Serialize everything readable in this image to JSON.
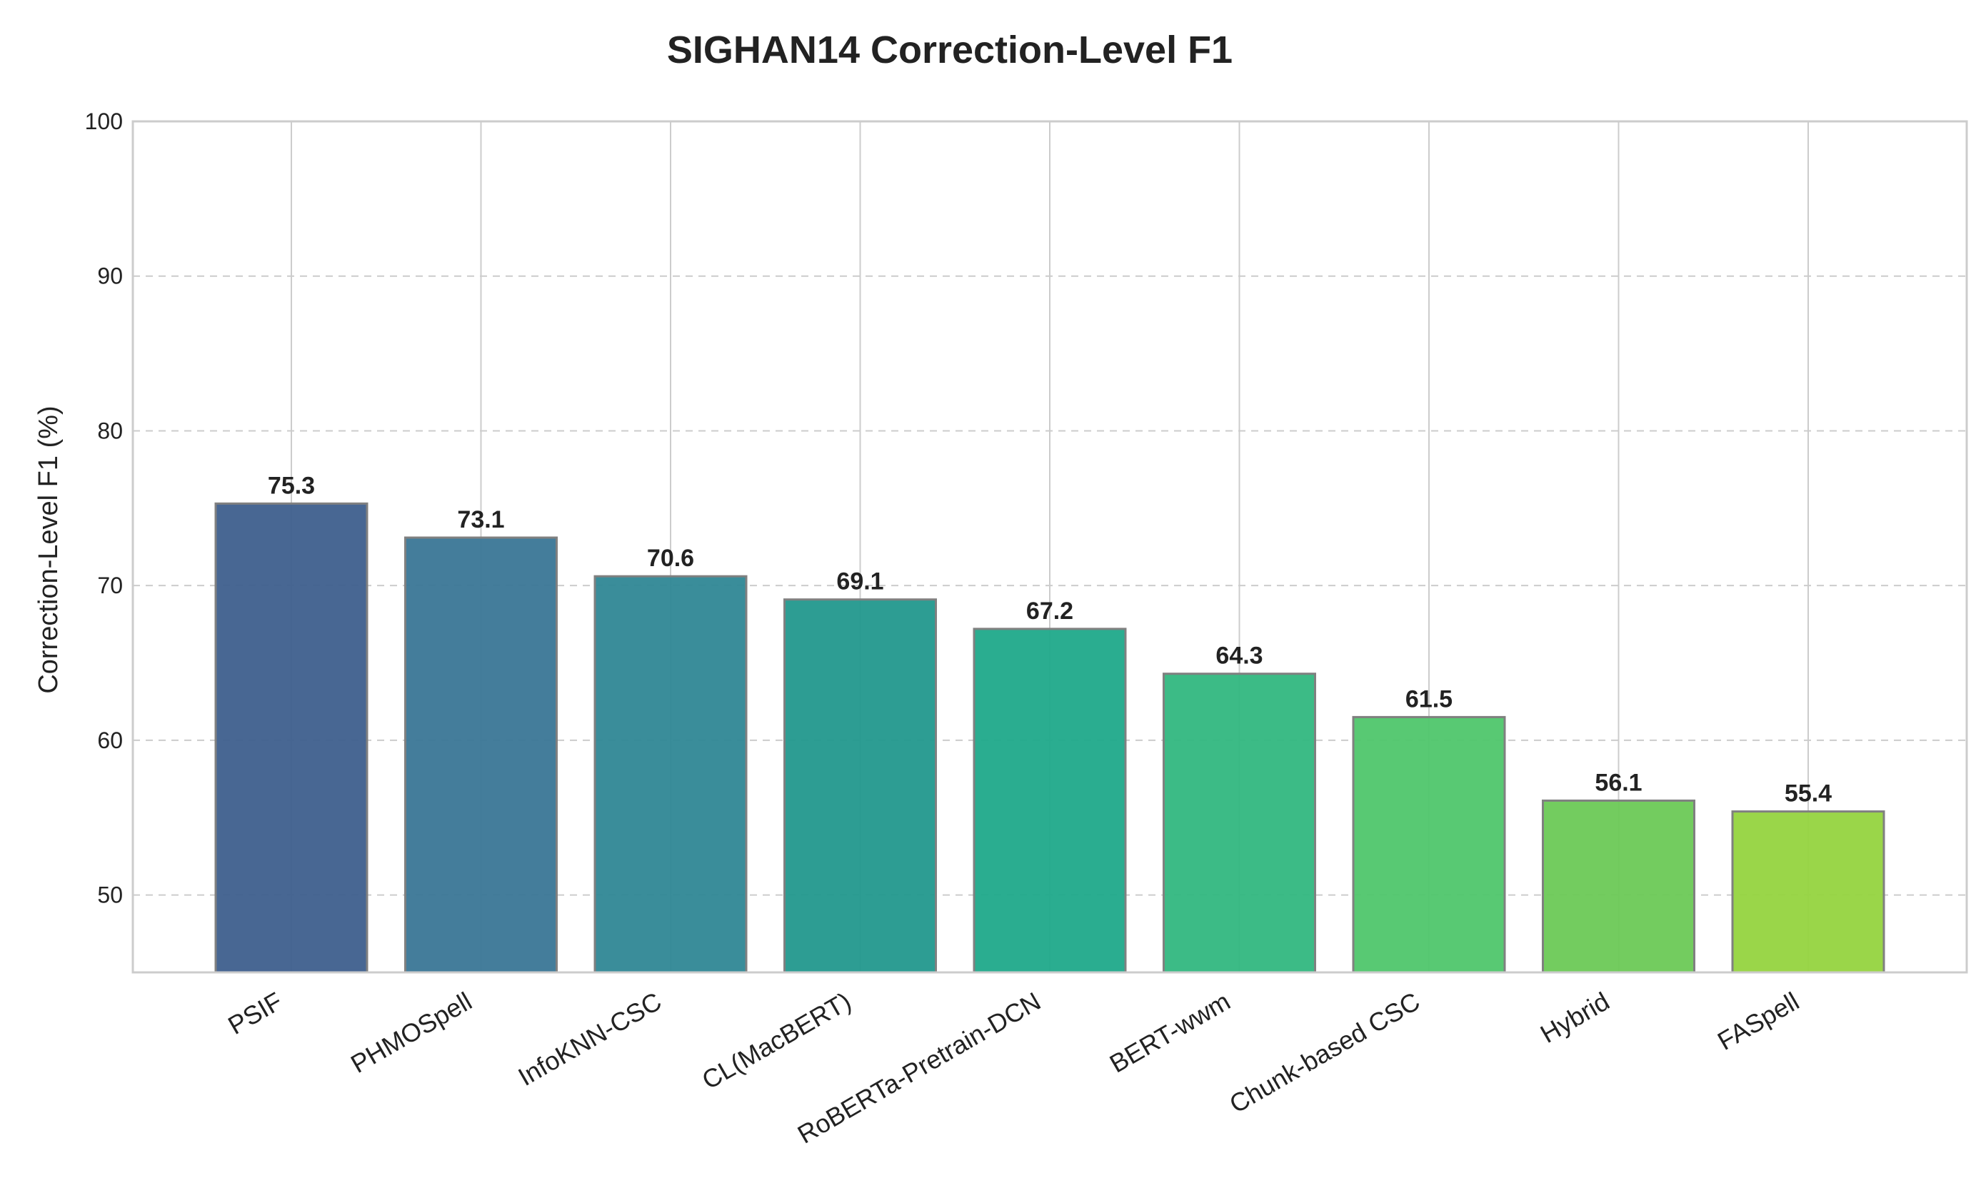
{
  "chart_data": {
    "type": "bar",
    "title": "SIGHAN14 Correction-Level F1",
    "xlabel": "",
    "ylabel": "Correction-Level F1 (%)",
    "ylim": [
      45,
      100
    ],
    "yticks": [
      50,
      60,
      70,
      80,
      90,
      100
    ],
    "grid": true,
    "categories": [
      "PSIF",
      "PHMOSpell",
      "InfoKNN-CSC",
      "CL(MacBERT)",
      "RoBERTa-Pretrain-DCN",
      "BERT-wwm",
      "Chunk-based CSC",
      "Hybrid",
      "FASpell"
    ],
    "values": [
      75.3,
      73.1,
      70.6,
      69.1,
      67.2,
      64.3,
      61.5,
      56.1,
      55.4
    ],
    "colors": [
      "#3e5f8d",
      "#3a7696",
      "#2f8795",
      "#22988d",
      "#1fa98a",
      "#31b77f",
      "#4fc66c",
      "#6cc956",
      "#95d43f"
    ]
  }
}
